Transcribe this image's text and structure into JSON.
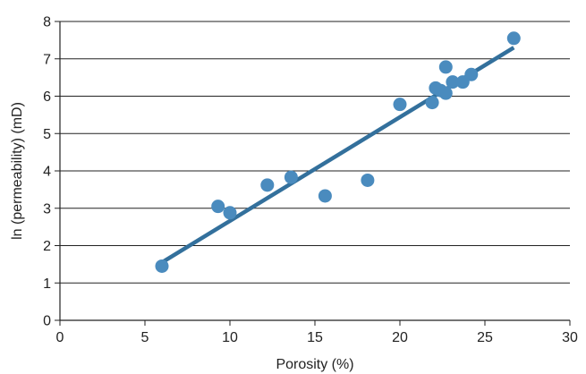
{
  "chart_data": {
    "type": "scatter",
    "title": "",
    "xlabel": "Porosity (%)",
    "ylabel": "ln (permeability) (mD)",
    "xlim": [
      0,
      30
    ],
    "ylim": [
      0,
      8
    ],
    "xticks": [
      0,
      5,
      10,
      15,
      20,
      25,
      30
    ],
    "yticks": [
      0,
      1,
      2,
      3,
      4,
      5,
      6,
      7,
      8
    ],
    "grid": "horizontal",
    "legend": "none",
    "series": [
      {
        "points": [
          {
            "x": 6.0,
            "y": 1.45
          },
          {
            "x": 9.3,
            "y": 3.05
          },
          {
            "x": 10.0,
            "y": 2.88
          },
          {
            "x": 12.2,
            "y": 3.62
          },
          {
            "x": 13.6,
            "y": 3.83
          },
          {
            "x": 15.6,
            "y": 3.33
          },
          {
            "x": 18.1,
            "y": 3.75
          },
          {
            "x": 20.0,
            "y": 5.78
          },
          {
            "x": 21.9,
            "y": 5.83
          },
          {
            "x": 22.1,
            "y": 6.22
          },
          {
            "x": 22.4,
            "y": 6.15
          },
          {
            "x": 22.7,
            "y": 6.08
          },
          {
            "x": 22.7,
            "y": 6.78
          },
          {
            "x": 23.1,
            "y": 6.38
          },
          {
            "x": 23.7,
            "y": 6.38
          },
          {
            "x": 24.2,
            "y": 6.58
          },
          {
            "x": 26.7,
            "y": 7.55
          }
        ]
      }
    ],
    "trendline": {
      "x": [
        6.0,
        26.7
      ],
      "y": [
        1.55,
        7.3
      ]
    }
  },
  "colors": {
    "point": "#4A8BBE",
    "trendline": "#33709C",
    "grid": "#222222",
    "axis": "#222222"
  }
}
